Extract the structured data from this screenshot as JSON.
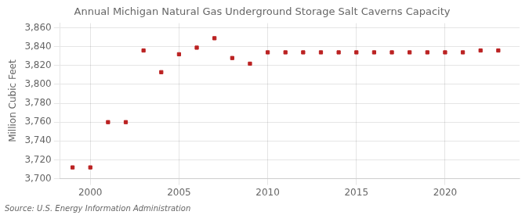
{
  "chart_data": {
    "type": "scatter",
    "title": "Annual Michigan Natural Gas Underground Storage Salt Caverns Capacity",
    "ylabel": "Million Cubic Feet",
    "annotation": "Source: U.S. Energy Information Administration",
    "x": [
      1999,
      2000,
      2001,
      2002,
      2003,
      2004,
      2005,
      2006,
      2007,
      2008,
      2009,
      2010,
      2011,
      2012,
      2013,
      2014,
      2015,
      2016,
      2017,
      2018,
      2019,
      2020,
      2021,
      2022,
      2023
    ],
    "values": [
      3712,
      3712,
      3760,
      3760,
      3836,
      3813,
      3832,
      3839,
      3849,
      3828,
      3822,
      3834,
      3834,
      3834,
      3834,
      3834,
      3834,
      3834,
      3834,
      3834,
      3834,
      3834,
      3834,
      3836,
      3836
    ],
    "color": "#bb2222",
    "marker": "square",
    "grid": true,
    "xlim": [
      1998.3,
      2024.2
    ],
    "xticks": [
      2000,
      2005,
      2010,
      2015,
      2020
    ],
    "ylim": [
      3700,
      3865
    ],
    "yticks": [
      {
        "value": 3700,
        "label": "3,700"
      },
      {
        "value": 3720,
        "label": "3,720"
      },
      {
        "value": 3740,
        "label": "3,740"
      },
      {
        "value": 3760,
        "label": "3,760"
      },
      {
        "value": 3780,
        "label": "3,780"
      },
      {
        "value": 3800,
        "label": "3,800"
      },
      {
        "value": 3820,
        "label": "3,820"
      },
      {
        "value": 3840,
        "label": "3,840"
      },
      {
        "value": 3860,
        "label": "3,860"
      }
    ]
  }
}
